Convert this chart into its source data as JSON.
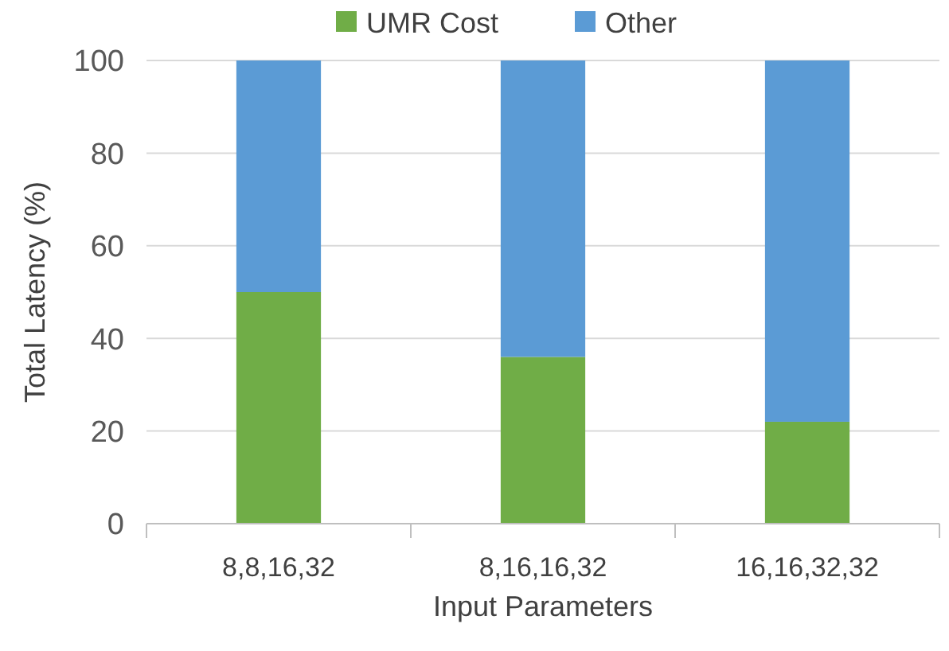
{
  "chart_data": {
    "type": "bar",
    "stacked": true,
    "xlabel": "Input Parameters",
    "ylabel": "Total Latency (%)",
    "categories": [
      "8,8,16,32",
      "8,16,16,32",
      "16,16,32,32"
    ],
    "series": [
      {
        "name": "UMR Cost",
        "color": "#70ad47",
        "values": [
          50,
          36,
          22
        ]
      },
      {
        "name": "Other",
        "color": "#5b9bd5",
        "values": [
          50,
          64,
          78
        ]
      }
    ],
    "ylim": [
      0,
      100
    ],
    "yticks": [
      0,
      20,
      40,
      60,
      80,
      100
    ],
    "grid": "y",
    "legend": "top"
  }
}
